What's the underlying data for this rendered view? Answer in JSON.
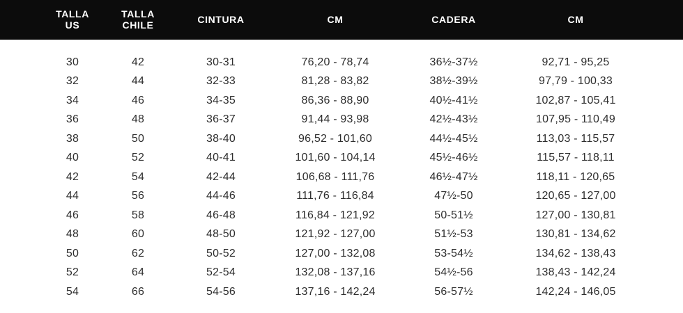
{
  "header": {
    "background": "#0c0c0c",
    "text_color": "#ffffff",
    "columns": [
      {
        "id": "talla-us",
        "label": "TALLA\nUS"
      },
      {
        "id": "talla-chile",
        "label": "TALLA\nCHILE"
      },
      {
        "id": "cintura",
        "label": "CINTURA"
      },
      {
        "id": "cintura-cm",
        "label": "CM"
      },
      {
        "id": "cadera",
        "label": "CADERA"
      },
      {
        "id": "cadera-cm",
        "label": "CM"
      }
    ]
  },
  "chart_data": {
    "type": "table",
    "columns": [
      "TALLA US",
      "TALLA CHILE",
      "CINTURA",
      "CM",
      "CADERA",
      "CM"
    ],
    "rows": [
      [
        "30",
        "42",
        "30-31",
        "76,20 - 78,74",
        "36½-37½",
        "92,71 - 95,25"
      ],
      [
        "32",
        "44",
        "32-33",
        "81,28 - 83,82",
        "38½-39½",
        "97,79 - 100,33"
      ],
      [
        "34",
        "46",
        "34-35",
        "86,36 - 88,90",
        "40½-41½",
        "102,87 - 105,41"
      ],
      [
        "36",
        "48",
        "36-37",
        "91,44 - 93,98",
        "42½-43½",
        "107,95 - 110,49"
      ],
      [
        "38",
        "50",
        "38-40",
        "96,52 - 101,60",
        "44½-45½",
        "113,03 - 115,57"
      ],
      [
        "40",
        "52",
        "40-41",
        "101,60 - 104,14",
        "45½-46½",
        "115,57 - 118,11"
      ],
      [
        "42",
        "54",
        "42-44",
        "106,68 - 111,76",
        "46½-47½",
        "118,11 - 120,65"
      ],
      [
        "44",
        "56",
        "44-46",
        "111,76 - 116,84",
        "47½-50",
        "120,65 - 127,00"
      ],
      [
        "46",
        "58",
        "46-48",
        "116,84 - 121,92",
        "50-51½",
        "127,00 - 130,81"
      ],
      [
        "48",
        "60",
        "48-50",
        "121,92 - 127,00",
        "51½-53",
        "130,81 - 134,62"
      ],
      [
        "50",
        "62",
        "50-52",
        "127,00 - 132,08",
        "53-54½",
        "134,62 - 138,43"
      ],
      [
        "52",
        "64",
        "52-54",
        "132,08 - 137,16",
        "54½-56",
        "138,43 - 142,24"
      ],
      [
        "54",
        "66",
        "54-56",
        "137,16 - 142,24",
        "56-57½",
        "142,24 - 146,05"
      ]
    ],
    "body_text_color": "#2e2e2e",
    "grid": false,
    "layout": "header-bar-black, centered columns"
  }
}
